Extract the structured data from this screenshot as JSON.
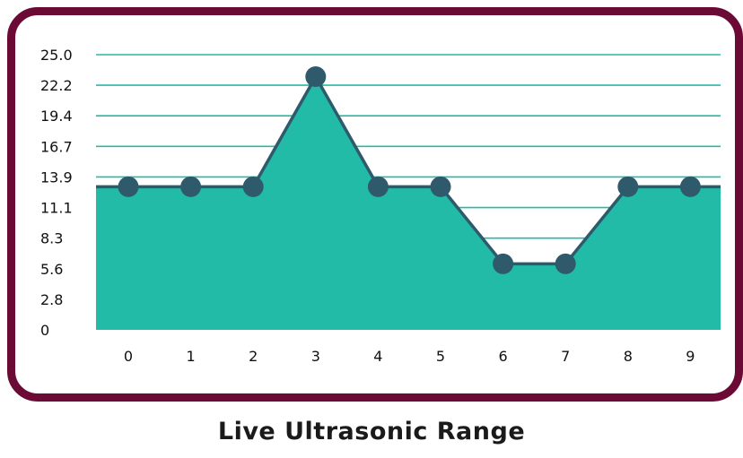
{
  "caption": "Live Ultrasonic Range",
  "chart_data": {
    "type": "area",
    "title": "",
    "xlabel": "",
    "ylabel": "",
    "x": [
      0,
      1,
      2,
      3,
      4,
      5,
      6,
      7,
      8,
      9
    ],
    "x_tick_labels": [
      "0",
      "1",
      "2",
      "3",
      "4",
      "5",
      "6",
      "7",
      "8",
      "9"
    ],
    "series": [
      {
        "values": [
          13,
          13,
          13,
          23,
          13,
          13,
          6,
          6,
          13,
          13
        ]
      }
    ],
    "ylim": [
      0,
      25
    ],
    "y_tick_labels": [
      "0",
      "2.8",
      "5.6",
      "8.3",
      "11.1",
      "13.9",
      "16.7",
      "19.4",
      "22.2",
      "25.0"
    ],
    "grid": true,
    "legend": "none",
    "colors": {
      "area_fill": "#22bba7",
      "line": "#2f5a6b",
      "marker": "#2f5a6b",
      "gridline": "#22bba7",
      "border": "#6b0a35"
    }
  }
}
